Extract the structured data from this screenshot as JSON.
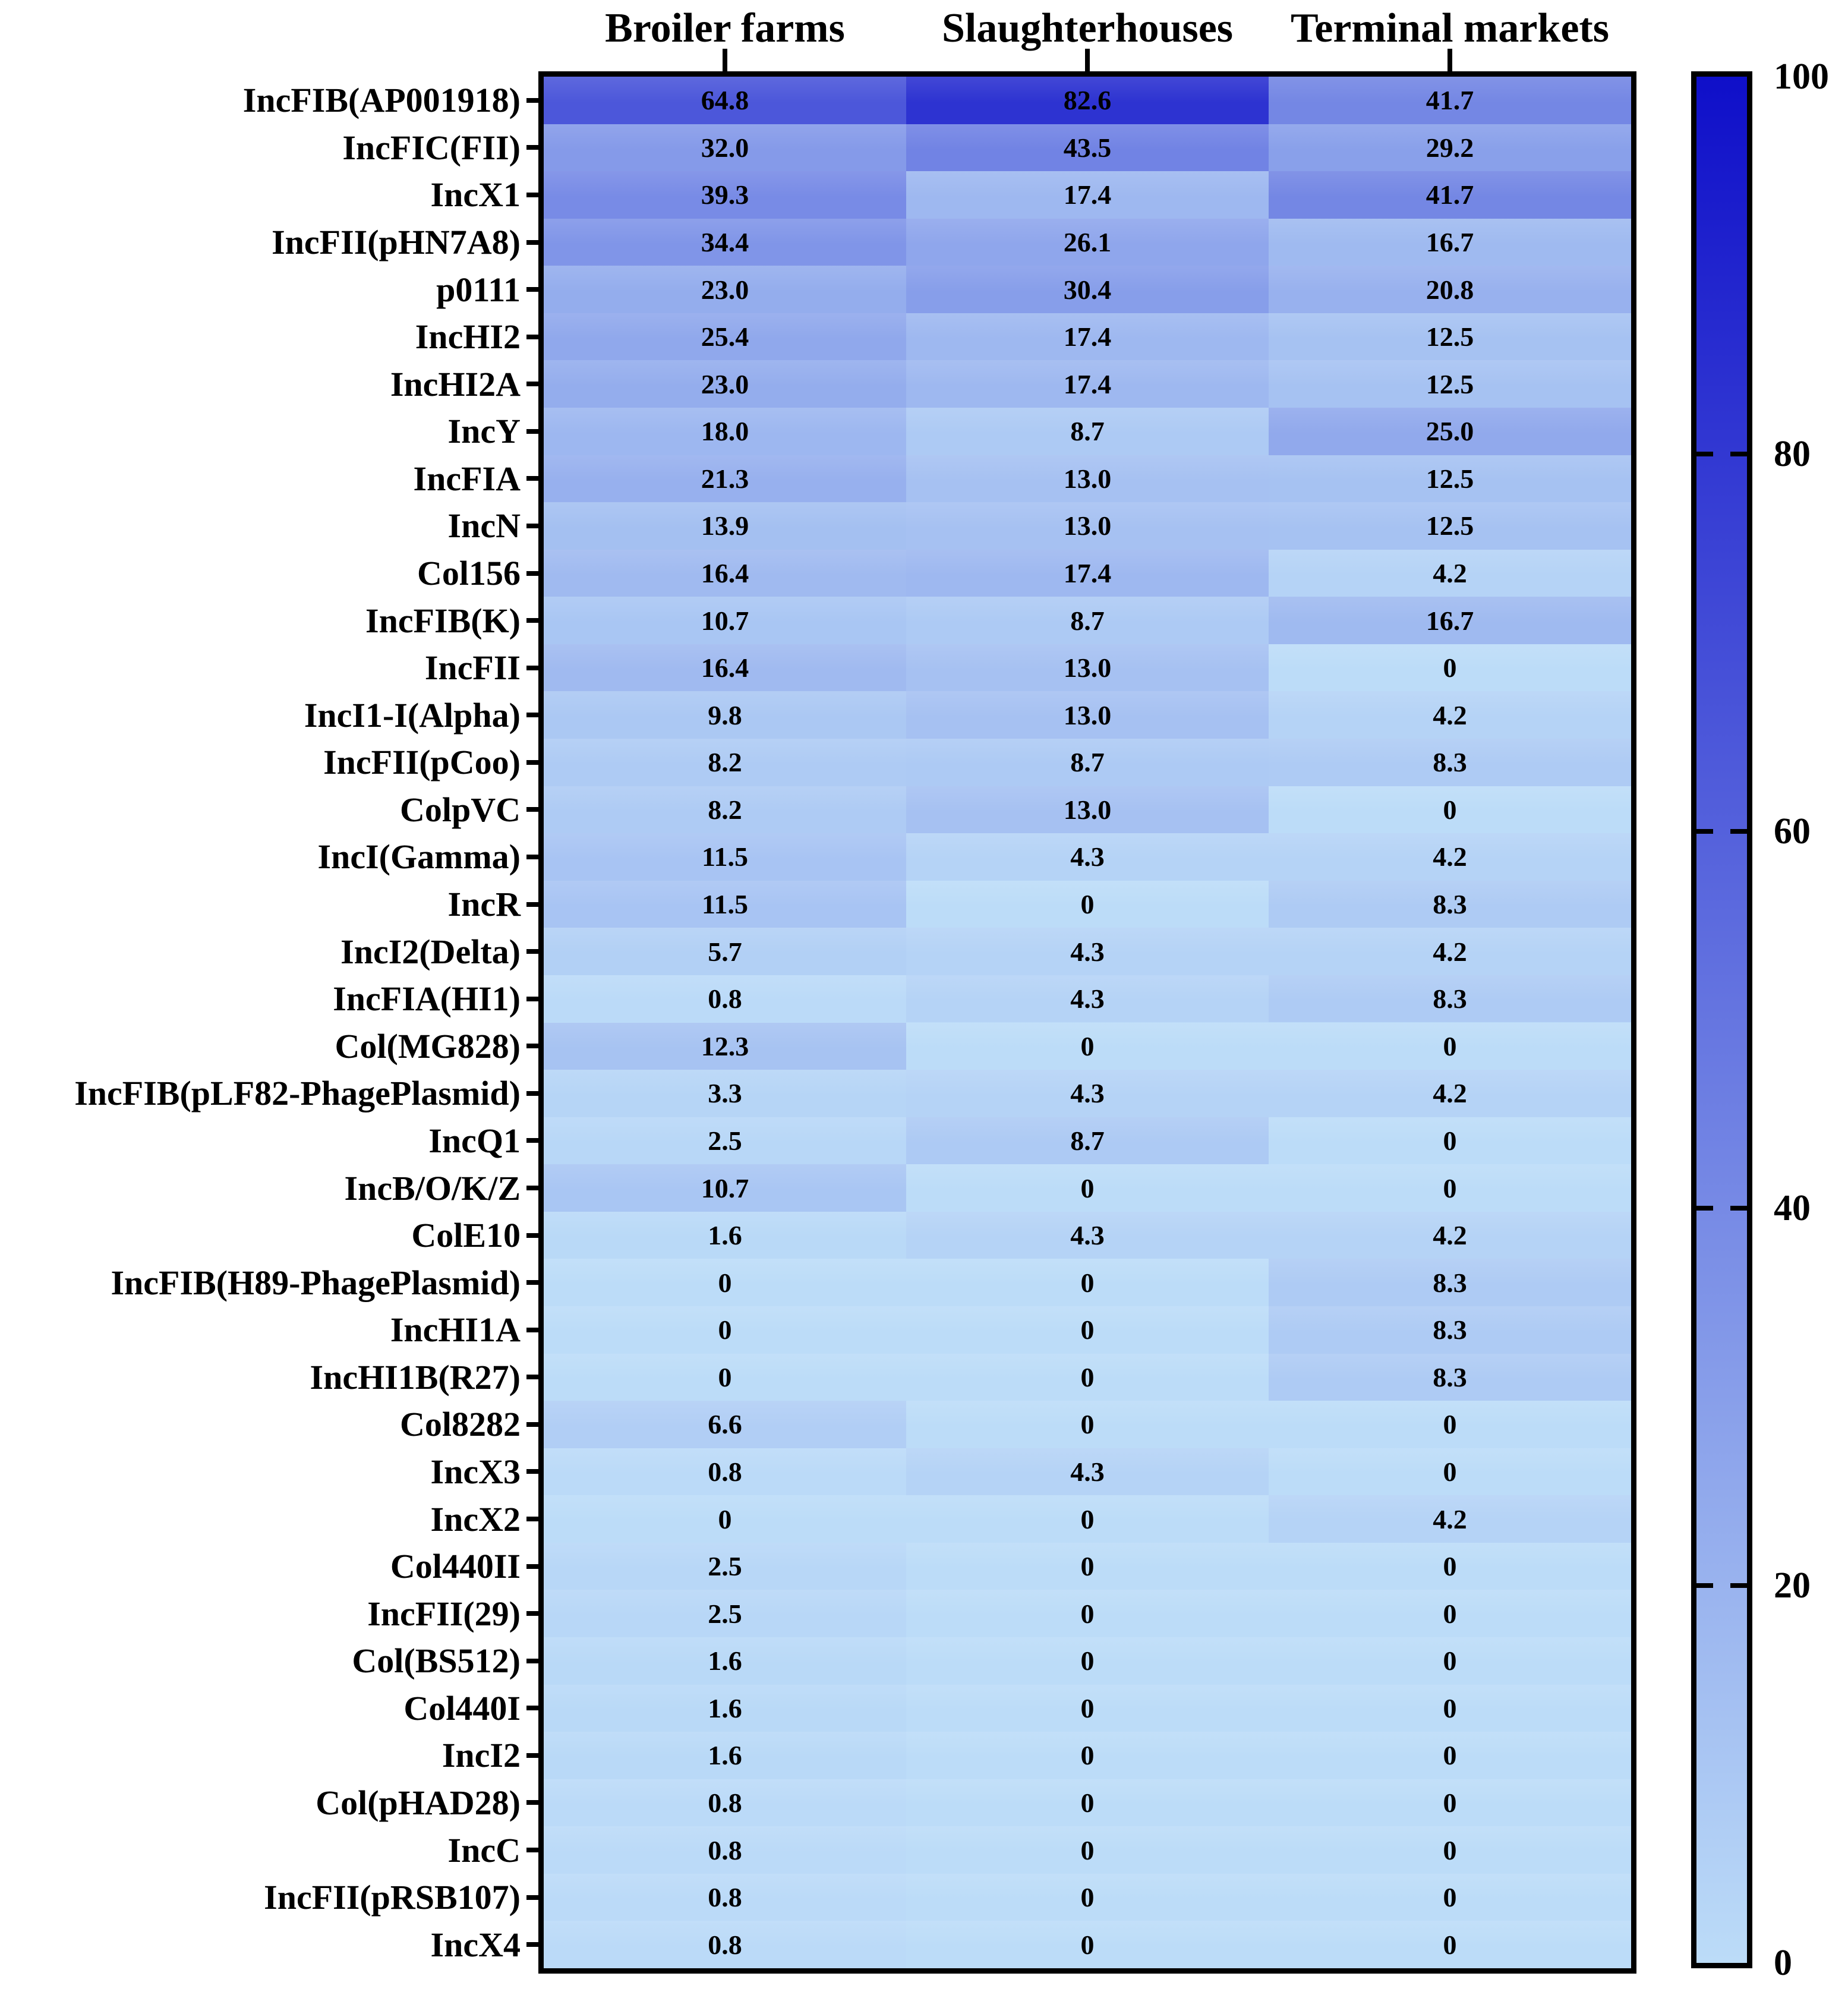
{
  "chart_data": {
    "type": "heatmap",
    "title": "",
    "columns": [
      "Broiler farms",
      "Slaughterhouses",
      "Terminal markets"
    ],
    "rows": [
      "IncFIB(AP001918)",
      "IncFIC(FII)",
      "IncX1",
      "IncFII(pHN7A8)",
      "p0111",
      "IncHI2",
      "IncHI2A",
      "IncY",
      "IncFIA",
      "IncN",
      "Col156",
      "IncFIB(K)",
      "IncFII",
      "IncI1-I(Alpha)",
      "IncFII(pCoo)",
      "ColpVC",
      "IncI(Gamma)",
      "IncR",
      "IncI2(Delta)",
      "IncFIA(HI1)",
      "Col(MG828)",
      "IncFIB(pLF82-PhagePlasmid)",
      "IncQ1",
      "IncB/O/K/Z",
      "ColE10",
      "IncFIB(H89-PhagePlasmid)",
      "IncHI1A",
      "IncHI1B(R27)",
      "Col8282",
      "IncX3",
      "IncX2",
      "Col440II",
      "IncFII(29)",
      "Col(BS512)",
      "Col440I",
      "IncI2",
      "Col(pHAD28)",
      "IncC",
      "IncFII(pRSB107)",
      "IncX4"
    ],
    "values_display": [
      [
        "64.8",
        "82.6",
        "41.7"
      ],
      [
        "32.0",
        "43.5",
        "29.2"
      ],
      [
        "39.3",
        "17.4",
        "41.7"
      ],
      [
        "34.4",
        "26.1",
        "16.7"
      ],
      [
        "23.0",
        "30.4",
        "20.8"
      ],
      [
        "25.4",
        "17.4",
        "12.5"
      ],
      [
        "23.0",
        "17.4",
        "12.5"
      ],
      [
        "18.0",
        "8.7",
        "25.0"
      ],
      [
        "21.3",
        "13.0",
        "12.5"
      ],
      [
        "13.9",
        "13.0",
        "12.5"
      ],
      [
        "16.4",
        "17.4",
        "4.2"
      ],
      [
        "10.7",
        "8.7",
        "16.7"
      ],
      [
        "16.4",
        "13.0",
        "0"
      ],
      [
        "9.8",
        "13.0",
        "4.2"
      ],
      [
        "8.2",
        "8.7",
        "8.3"
      ],
      [
        "8.2",
        "13.0",
        "0"
      ],
      [
        "11.5",
        "4.3",
        "4.2"
      ],
      [
        "11.5",
        "0",
        "8.3"
      ],
      [
        "5.7",
        "4.3",
        "4.2"
      ],
      [
        "0.8",
        "4.3",
        "8.3"
      ],
      [
        "12.3",
        "0",
        "0"
      ],
      [
        "3.3",
        "4.3",
        "4.2"
      ],
      [
        "2.5",
        "8.7",
        "0"
      ],
      [
        "10.7",
        "0",
        "0"
      ],
      [
        "1.6",
        "4.3",
        "4.2"
      ],
      [
        "0",
        "0",
        "8.3"
      ],
      [
        "0",
        "0",
        "8.3"
      ],
      [
        "0",
        "0",
        "8.3"
      ],
      [
        "6.6",
        "0",
        "0"
      ],
      [
        "0.8",
        "4.3",
        "0"
      ],
      [
        "0",
        "0",
        "4.2"
      ],
      [
        "2.5",
        "0",
        "0"
      ],
      [
        "2.5",
        "0",
        "0"
      ],
      [
        "1.6",
        "0",
        "0"
      ],
      [
        "1.6",
        "0",
        "0"
      ],
      [
        "1.6",
        "0",
        "0"
      ],
      [
        "0.8",
        "0",
        "0"
      ],
      [
        "0.8",
        "0",
        "0"
      ],
      [
        "0.8",
        "0",
        "0"
      ],
      [
        "0.8",
        "0",
        "0"
      ]
    ],
    "colorbar": {
      "min": 0,
      "max": 100,
      "tick_labels": [
        "100",
        "80",
        "60",
        "40",
        "20",
        "0"
      ],
      "tick_values": [
        100,
        80,
        60,
        40,
        20,
        0
      ],
      "color_low": "#BCDCF8",
      "color_high": "#0F0FC9",
      "position": "right"
    },
    "grid": false,
    "value_text_color": "#000000",
    "frame_color": "#000000"
  }
}
